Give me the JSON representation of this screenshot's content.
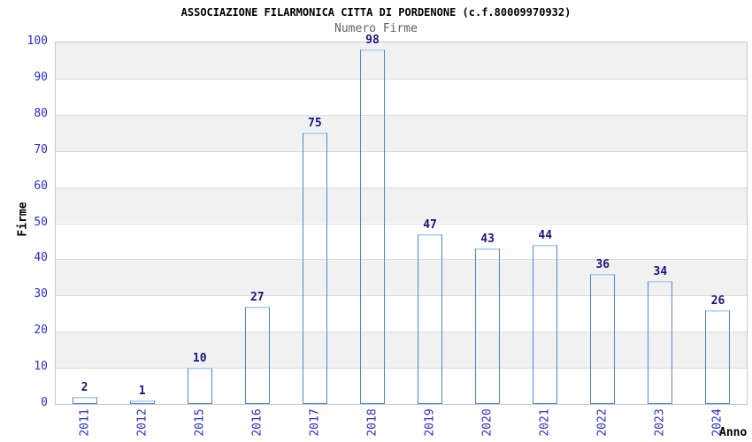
{
  "chart_data": {
    "type": "bar",
    "title": "ASSOCIAZIONE FILARMONICA CITTA DI PORDENONE (c.f.80009970932)",
    "subtitle": "Numero Firme",
    "xlabel": "Anno",
    "ylabel": "Firme",
    "categories": [
      "2011",
      "2012",
      "2015",
      "2016",
      "2017",
      "2018",
      "2019",
      "2020",
      "2021",
      "2022",
      "2023",
      "2024"
    ],
    "values": [
      2,
      1,
      10,
      27,
      75,
      98,
      47,
      43,
      44,
      36,
      34,
      26
    ],
    "ylim": [
      0,
      100
    ],
    "ytick_step": 10,
    "grid": "horizontal-bands-alternating",
    "legend": "none",
    "colors": {
      "tick_label": "#2b2bd0",
      "value_label": "#17177e",
      "title_text": "#000000",
      "subtitle_text": "#606060",
      "axis_label_text": "#000000",
      "band_shaded": "#f1f1f2",
      "band_plain": "#ffffff",
      "gridline": "#dcdcdc",
      "plot_border": "#c9c9c9",
      "bar_border": "#4a87dd",
      "bar_dark": "#1e1e8a",
      "bar_highlight": "#aaaacd"
    }
  }
}
